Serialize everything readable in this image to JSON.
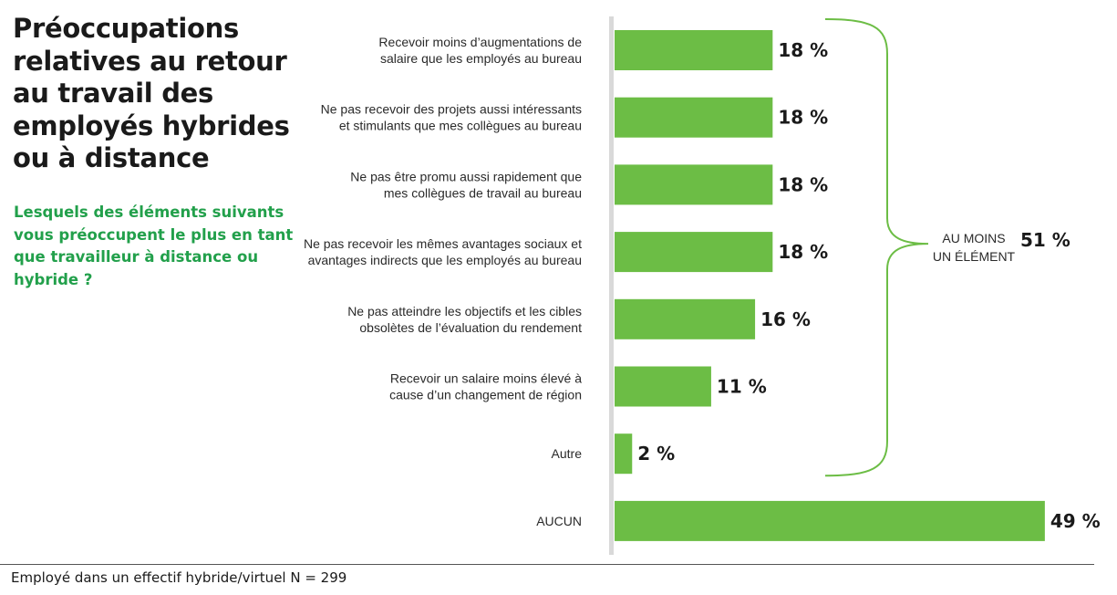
{
  "chart_data": {
    "type": "bar",
    "orientation": "horizontal",
    "title": "Préoccupations relatives au retour au travail des employés hybrides ou à distance",
    "subtitle": "Lesquels des éléments suivants vous préoccupent le plus en tant que travailleur à distance ou hybride ?",
    "categories": [
      [
        "Recevoir moins d’augmentations de",
        "salaire que les employés au bureau"
      ],
      [
        "Ne pas recevoir des projets aussi intéressants",
        "et stimulants que mes collègues au bureau"
      ],
      [
        "Ne pas être promu aussi rapidement que",
        "mes collègues de travail au bureau"
      ],
      [
        "Ne pas recevoir les mêmes avantages sociaux et",
        "avantages indirects que les employés au bureau"
      ],
      [
        "Ne pas atteindre les objectifs et les cibles",
        "obsolètes de l’évaluation du rendement"
      ],
      [
        "Recevoir un salaire moins élevé à",
        "cause d’un changement de région"
      ],
      [
        "Autre"
      ],
      [
        "AUCUN"
      ]
    ],
    "values": [
      18,
      18,
      18,
      18,
      16,
      11,
      2,
      49
    ],
    "value_labels": [
      "18 %",
      "18 %",
      "18 %",
      "18 %",
      "16 %",
      "11 %",
      "2 %",
      "49 %"
    ],
    "xlim": [
      0,
      49
    ],
    "grid": false,
    "legend": "none",
    "bar_color": "#6cbd45",
    "annotation": {
      "text_lines": [
        "AU MOINS",
        "UN ÉLÉMENT"
      ],
      "value": "51 %",
      "spans_categories": [
        0,
        6
      ],
      "bracket_color": "#6cbd45"
    },
    "footnote": "Employé dans un effectif hybride/virtuel N = 299"
  },
  "colors": {
    "title": "#1a1a1a",
    "subtitle": "#22a04b",
    "bar": "#6cbd45",
    "axis": "#d9d9d9"
  }
}
